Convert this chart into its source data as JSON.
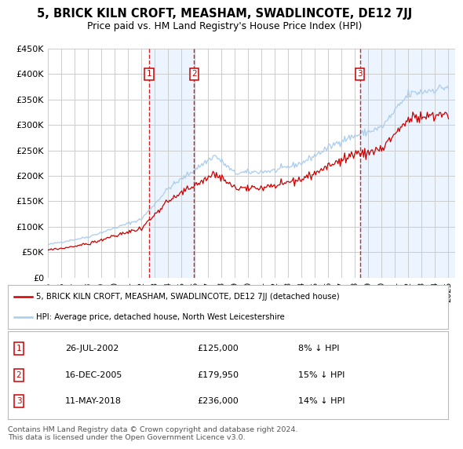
{
  "title": "5, BRICK KILN CROFT, MEASHAM, SWADLINCOTE, DE12 7JJ",
  "subtitle": "Price paid vs. HM Land Registry's House Price Index (HPI)",
  "legend_red": "5, BRICK KILN CROFT, MEASHAM, SWADLINCOTE, DE12 7JJ (detached house)",
  "legend_blue": "HPI: Average price, detached house, North West Leicestershire",
  "footer": "Contains HM Land Registry data © Crown copyright and database right 2024.\nThis data is licensed under the Open Government Licence v3.0.",
  "transactions": [
    {
      "num": 1,
      "date": "26-JUL-2002",
      "price": 125000,
      "price_str": "£125,000",
      "hpi_diff": "8% ↓ HPI",
      "x": 2002.57
    },
    {
      "num": 2,
      "date": "16-DEC-2005",
      "price": 179950,
      "price_str": "£179,950",
      "hpi_diff": "15% ↓ HPI",
      "x": 2005.96
    },
    {
      "num": 3,
      "date": "11-MAY-2018",
      "price": 236000,
      "price_str": "£236,000",
      "hpi_diff": "14% ↓ HPI",
      "x": 2018.36
    }
  ],
  "ylim": [
    0,
    450000
  ],
  "xlim_start": 1995,
  "xlim_end": 2025.5,
  "ytick_values": [
    0,
    50000,
    100000,
    150000,
    200000,
    250000,
    300000,
    350000,
    400000,
    450000
  ],
  "ytick_labels": [
    "£0",
    "£50K",
    "£100K",
    "£150K",
    "£200K",
    "£250K",
    "£300K",
    "£350K",
    "£400K",
    "£450K"
  ],
  "xtick_years": [
    1995,
    1996,
    1997,
    1998,
    1999,
    2000,
    2001,
    2002,
    2003,
    2004,
    2005,
    2006,
    2007,
    2008,
    2009,
    2010,
    2011,
    2012,
    2013,
    2014,
    2015,
    2016,
    2017,
    2018,
    2019,
    2020,
    2021,
    2022,
    2023,
    2024,
    2025
  ],
  "red_color": "#cc0000",
  "blue_color": "#aaccee",
  "shade_color": "#ddeeff",
  "background_color": "#ffffff",
  "grid_color": "#cccccc",
  "transaction_box_color": "#cc0000",
  "shade_alpha": 0.55
}
